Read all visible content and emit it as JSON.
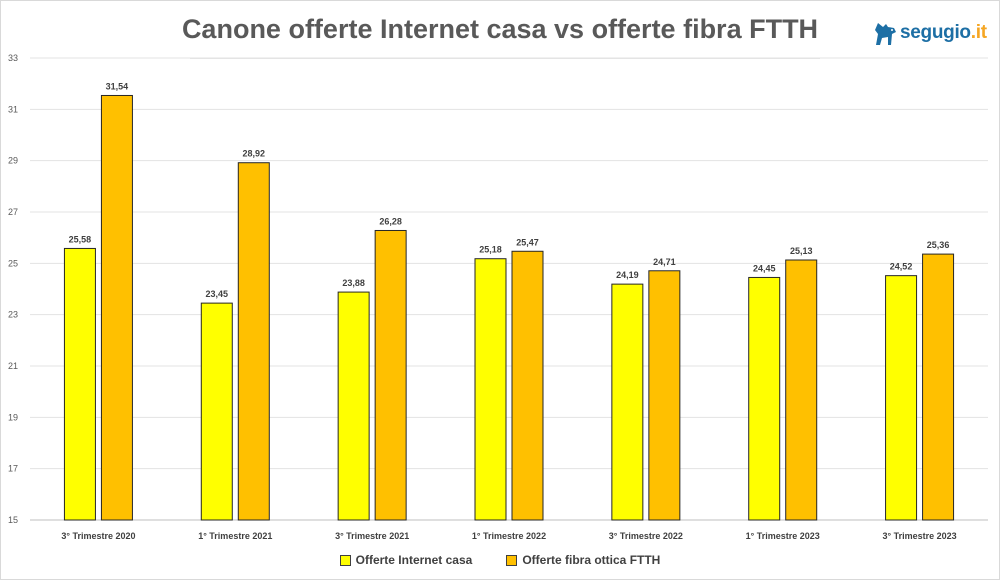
{
  "header": {
    "title": "Canone offerte Internet casa vs offerte fibra FTTH",
    "logo_text": "segugio",
    "logo_suffix": ".it",
    "logo_icon": "dog-icon"
  },
  "chart_data": {
    "type": "bar",
    "title": "Canone offerte Internet casa vs offerte fibra FTTH",
    "xlabel": "",
    "ylabel": "",
    "ylim": [
      15,
      33
    ],
    "yticks": [
      "15",
      "17",
      "19",
      "21",
      "23",
      "25",
      "27",
      "29",
      "31",
      "33"
    ],
    "grid": true,
    "legend_position": "bottom",
    "categories": [
      "3° Trimestre 2020",
      "1° Trimestre 2021",
      "3° Trimestre 2021",
      "1° Trimestre 2022",
      "3° Trimestre 2022",
      "1° Trimestre 2023",
      "3° Trimestre 2023"
    ],
    "series": [
      {
        "name": "Offerte Internet casa",
        "color": "#ffff00",
        "values": [
          25.58,
          23.45,
          23.88,
          25.18,
          24.19,
          24.45,
          24.52
        ],
        "labels": [
          "25,58",
          "23,45",
          "23,88",
          "25,18",
          "24,19",
          "24,45",
          "24,52"
        ]
      },
      {
        "name": "Offerte fibra ottica FTTH",
        "color": "#ffc000",
        "values": [
          31.54,
          28.92,
          26.28,
          25.47,
          24.71,
          25.13,
          25.36
        ],
        "labels": [
          "31,54",
          "28,92",
          "26,28",
          "25,47",
          "24,71",
          "25,13",
          "25,36"
        ]
      }
    ]
  }
}
